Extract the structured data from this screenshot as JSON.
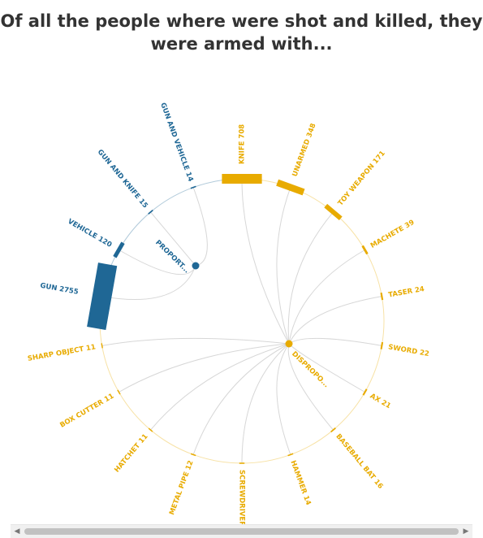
{
  "title": {
    "line1": "Of all the people where were shot and killed, they",
    "line2": "were armed with..."
  },
  "colors": {
    "proportionate": "#1f6795",
    "disproportionate": "#e8ab00",
    "link": "#d7d7d7",
    "title": "#333333"
  },
  "chart_data": {
    "type": "radial-network",
    "title": "Of all the people where were shot and killed, they were armed with...",
    "groups": [
      {
        "label": "PROPORT...",
        "color": "#1f6795"
      },
      {
        "label": "DISPROPO...",
        "color": "#e8ab00"
      }
    ],
    "nodes": [
      {
        "name": "KNIFE",
        "value": 708,
        "group": "DISPROPO..."
      },
      {
        "name": "UNARMED",
        "value": 348,
        "group": "DISPROPO..."
      },
      {
        "name": "TOY WEAPON",
        "value": 171,
        "group": "DISPROPO..."
      },
      {
        "name": "MACHETE",
        "value": 39,
        "group": "DISPROPO..."
      },
      {
        "name": "TASER",
        "value": 24,
        "group": "DISPROPO..."
      },
      {
        "name": "SWORD",
        "value": 22,
        "group": "DISPROPO..."
      },
      {
        "name": "AX",
        "value": 21,
        "group": "DISPROPO..."
      },
      {
        "name": "BASEBALL BAT",
        "value": 16,
        "group": "DISPROPO..."
      },
      {
        "name": "HAMMER",
        "value": 14,
        "group": "DISPROPO..."
      },
      {
        "name": "SCREWDRIVER",
        "value": 12,
        "group": "DISPROPO..."
      },
      {
        "name": "METAL PIPE",
        "value": 12,
        "group": "DISPROPO..."
      },
      {
        "name": "HATCHET",
        "value": 11,
        "group": "DISPROPO..."
      },
      {
        "name": "BOX CUTTER",
        "value": 11,
        "group": "DISPROPO..."
      },
      {
        "name": "SHARP OBJECT",
        "value": 11,
        "group": "DISPROPO..."
      },
      {
        "name": "GUN",
        "value": 2755,
        "group": "PROPORT..."
      },
      {
        "name": "VEHICLE",
        "value": 120,
        "group": "PROPORT..."
      },
      {
        "name": "GUN AND KNIFE",
        "value": 15,
        "group": "PROPORT..."
      },
      {
        "name": "GUN AND VEHICLE",
        "value": 14,
        "group": "PROPORT..."
      }
    ]
  },
  "scrollbar": {
    "left_arrow": "◀",
    "right_arrow": "▶"
  }
}
